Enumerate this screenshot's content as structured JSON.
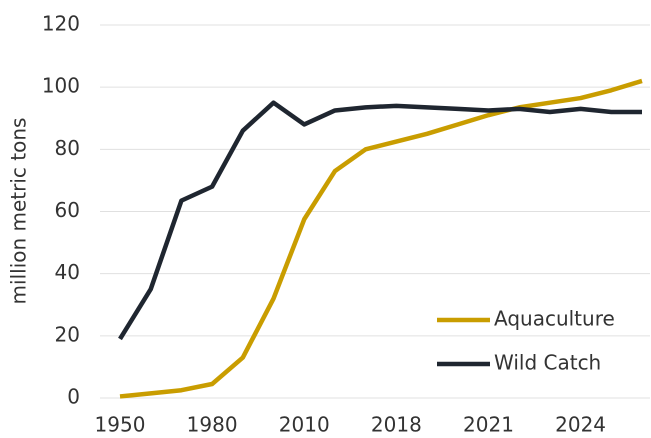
{
  "chart_data": {
    "type": "line",
    "y_label": "million metric tons",
    "categories": [
      "1950",
      null,
      null,
      "1980",
      null,
      null,
      "2010",
      null,
      null,
      "2018",
      null,
      null,
      "2021",
      null,
      null,
      "2024",
      null,
      null
    ],
    "series": [
      {
        "name": "Aquaculture",
        "color": "#c99d00",
        "values": [
          0.5,
          1.5,
          2.5,
          4.5,
          13,
          32,
          57.5,
          73,
          80,
          82.5,
          85,
          88,
          91,
          93.5,
          95,
          96.5,
          99,
          102
        ]
      },
      {
        "name": "Wild Catch",
        "color": "#1f2630",
        "values": [
          19,
          35,
          63.5,
          68,
          86,
          95,
          88,
          92.5,
          93.5,
          94,
          93.5,
          93,
          92.5,
          93,
          92,
          93,
          92,
          92
        ]
      }
    ],
    "ylim": [
      0,
      120
    ],
    "yticks": [
      0,
      20,
      40,
      60,
      80,
      100,
      120
    ],
    "grid": true,
    "legend": "lower right"
  }
}
